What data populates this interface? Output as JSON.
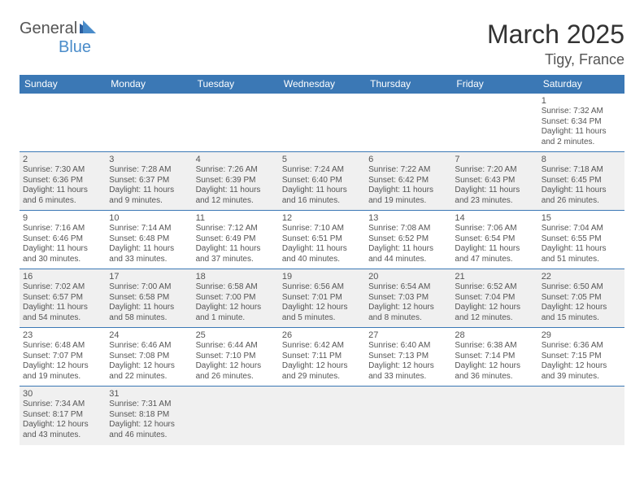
{
  "logo": {
    "word1": "General",
    "word2": "Blue"
  },
  "title": "March 2025",
  "location": "Tigy, France",
  "accent_color": "#3b78b5",
  "shade_color": "#f0f0f0",
  "day_headers": [
    "Sunday",
    "Monday",
    "Tuesday",
    "Wednesday",
    "Thursday",
    "Friday",
    "Saturday"
  ],
  "weeks": [
    {
      "shaded": false,
      "days": [
        null,
        null,
        null,
        null,
        null,
        null,
        {
          "num": "1",
          "sunrise": "Sunrise: 7:32 AM",
          "sunset": "Sunset: 6:34 PM",
          "daylight": "Daylight: 11 hours and 2 minutes."
        }
      ]
    },
    {
      "shaded": true,
      "days": [
        {
          "num": "2",
          "sunrise": "Sunrise: 7:30 AM",
          "sunset": "Sunset: 6:36 PM",
          "daylight": "Daylight: 11 hours and 6 minutes."
        },
        {
          "num": "3",
          "sunrise": "Sunrise: 7:28 AM",
          "sunset": "Sunset: 6:37 PM",
          "daylight": "Daylight: 11 hours and 9 minutes."
        },
        {
          "num": "4",
          "sunrise": "Sunrise: 7:26 AM",
          "sunset": "Sunset: 6:39 PM",
          "daylight": "Daylight: 11 hours and 12 minutes."
        },
        {
          "num": "5",
          "sunrise": "Sunrise: 7:24 AM",
          "sunset": "Sunset: 6:40 PM",
          "daylight": "Daylight: 11 hours and 16 minutes."
        },
        {
          "num": "6",
          "sunrise": "Sunrise: 7:22 AM",
          "sunset": "Sunset: 6:42 PM",
          "daylight": "Daylight: 11 hours and 19 minutes."
        },
        {
          "num": "7",
          "sunrise": "Sunrise: 7:20 AM",
          "sunset": "Sunset: 6:43 PM",
          "daylight": "Daylight: 11 hours and 23 minutes."
        },
        {
          "num": "8",
          "sunrise": "Sunrise: 7:18 AM",
          "sunset": "Sunset: 6:45 PM",
          "daylight": "Daylight: 11 hours and 26 minutes."
        }
      ]
    },
    {
      "shaded": false,
      "days": [
        {
          "num": "9",
          "sunrise": "Sunrise: 7:16 AM",
          "sunset": "Sunset: 6:46 PM",
          "daylight": "Daylight: 11 hours and 30 minutes."
        },
        {
          "num": "10",
          "sunrise": "Sunrise: 7:14 AM",
          "sunset": "Sunset: 6:48 PM",
          "daylight": "Daylight: 11 hours and 33 minutes."
        },
        {
          "num": "11",
          "sunrise": "Sunrise: 7:12 AM",
          "sunset": "Sunset: 6:49 PM",
          "daylight": "Daylight: 11 hours and 37 minutes."
        },
        {
          "num": "12",
          "sunrise": "Sunrise: 7:10 AM",
          "sunset": "Sunset: 6:51 PM",
          "daylight": "Daylight: 11 hours and 40 minutes."
        },
        {
          "num": "13",
          "sunrise": "Sunrise: 7:08 AM",
          "sunset": "Sunset: 6:52 PM",
          "daylight": "Daylight: 11 hours and 44 minutes."
        },
        {
          "num": "14",
          "sunrise": "Sunrise: 7:06 AM",
          "sunset": "Sunset: 6:54 PM",
          "daylight": "Daylight: 11 hours and 47 minutes."
        },
        {
          "num": "15",
          "sunrise": "Sunrise: 7:04 AM",
          "sunset": "Sunset: 6:55 PM",
          "daylight": "Daylight: 11 hours and 51 minutes."
        }
      ]
    },
    {
      "shaded": true,
      "days": [
        {
          "num": "16",
          "sunrise": "Sunrise: 7:02 AM",
          "sunset": "Sunset: 6:57 PM",
          "daylight": "Daylight: 11 hours and 54 minutes."
        },
        {
          "num": "17",
          "sunrise": "Sunrise: 7:00 AM",
          "sunset": "Sunset: 6:58 PM",
          "daylight": "Daylight: 11 hours and 58 minutes."
        },
        {
          "num": "18",
          "sunrise": "Sunrise: 6:58 AM",
          "sunset": "Sunset: 7:00 PM",
          "daylight": "Daylight: 12 hours and 1 minute."
        },
        {
          "num": "19",
          "sunrise": "Sunrise: 6:56 AM",
          "sunset": "Sunset: 7:01 PM",
          "daylight": "Daylight: 12 hours and 5 minutes."
        },
        {
          "num": "20",
          "sunrise": "Sunrise: 6:54 AM",
          "sunset": "Sunset: 7:03 PM",
          "daylight": "Daylight: 12 hours and 8 minutes."
        },
        {
          "num": "21",
          "sunrise": "Sunrise: 6:52 AM",
          "sunset": "Sunset: 7:04 PM",
          "daylight": "Daylight: 12 hours and 12 minutes."
        },
        {
          "num": "22",
          "sunrise": "Sunrise: 6:50 AM",
          "sunset": "Sunset: 7:05 PM",
          "daylight": "Daylight: 12 hours and 15 minutes."
        }
      ]
    },
    {
      "shaded": false,
      "days": [
        {
          "num": "23",
          "sunrise": "Sunrise: 6:48 AM",
          "sunset": "Sunset: 7:07 PM",
          "daylight": "Daylight: 12 hours and 19 minutes."
        },
        {
          "num": "24",
          "sunrise": "Sunrise: 6:46 AM",
          "sunset": "Sunset: 7:08 PM",
          "daylight": "Daylight: 12 hours and 22 minutes."
        },
        {
          "num": "25",
          "sunrise": "Sunrise: 6:44 AM",
          "sunset": "Sunset: 7:10 PM",
          "daylight": "Daylight: 12 hours and 26 minutes."
        },
        {
          "num": "26",
          "sunrise": "Sunrise: 6:42 AM",
          "sunset": "Sunset: 7:11 PM",
          "daylight": "Daylight: 12 hours and 29 minutes."
        },
        {
          "num": "27",
          "sunrise": "Sunrise: 6:40 AM",
          "sunset": "Sunset: 7:13 PM",
          "daylight": "Daylight: 12 hours and 33 minutes."
        },
        {
          "num": "28",
          "sunrise": "Sunrise: 6:38 AM",
          "sunset": "Sunset: 7:14 PM",
          "daylight": "Daylight: 12 hours and 36 minutes."
        },
        {
          "num": "29",
          "sunrise": "Sunrise: 6:36 AM",
          "sunset": "Sunset: 7:15 PM",
          "daylight": "Daylight: 12 hours and 39 minutes."
        }
      ]
    },
    {
      "shaded": true,
      "days": [
        {
          "num": "30",
          "sunrise": "Sunrise: 7:34 AM",
          "sunset": "Sunset: 8:17 PM",
          "daylight": "Daylight: 12 hours and 43 minutes."
        },
        {
          "num": "31",
          "sunrise": "Sunrise: 7:31 AM",
          "sunset": "Sunset: 8:18 PM",
          "daylight": "Daylight: 12 hours and 46 minutes."
        },
        null,
        null,
        null,
        null,
        null
      ]
    }
  ]
}
